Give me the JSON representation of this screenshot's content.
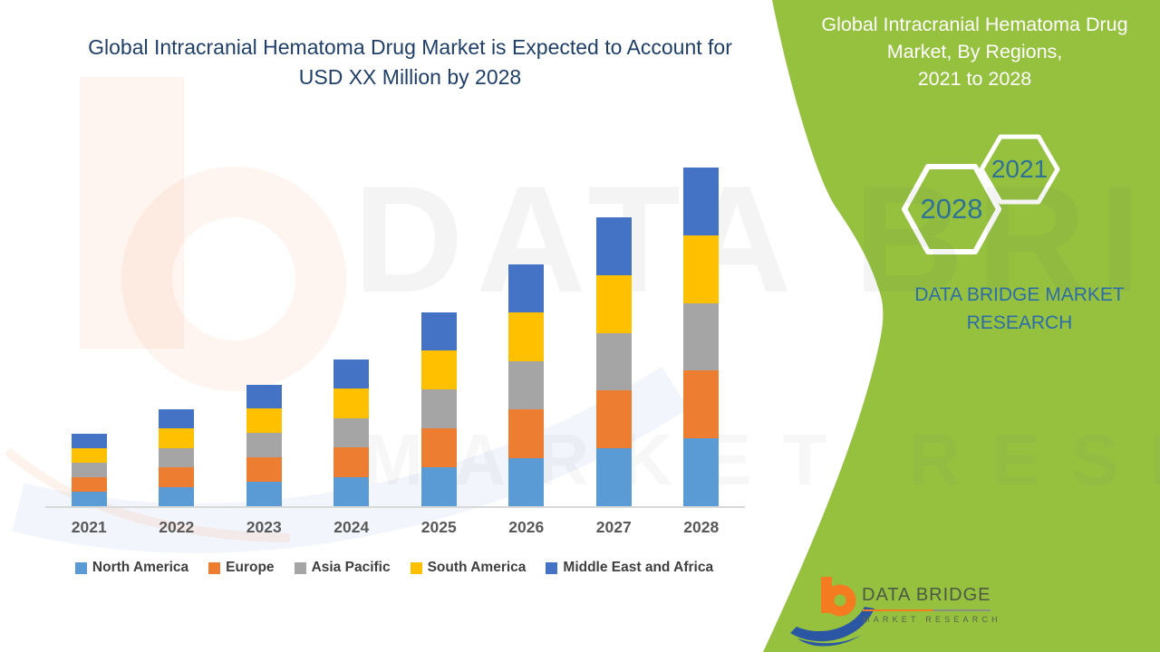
{
  "colors": {
    "title": "#1F3F68",
    "panel_green": "#95C13E",
    "hexagon_year": "#2E7296",
    "panel_brand": "#2E6DA8",
    "axis_label": "#595959",
    "legend_text": "#3F3F3F",
    "axis_line": "#D9D9D9",
    "logo_orange": "#F47B20",
    "logo_blue": "#2B56A4"
  },
  "header": {
    "title_line1": "Global Intracranial Hematoma Drug Market is Expected to Account for",
    "title_line2": "USD XX Million by 2028"
  },
  "side_panel": {
    "title_line1": "Global Intracranial Hematoma Drug",
    "title_line2": "Market, By Regions,",
    "title_line3": "2021 to 2028",
    "hexagon_year_top": "2021",
    "hexagon_year_bottom": "2028",
    "brand_line1": "DATA BRIDGE MARKET",
    "brand_line2": "RESEARCH"
  },
  "logo": {
    "name": "DATA BRIDGE",
    "subtext": "MARKET RESEARCH"
  },
  "watermark": {
    "line1": "DATA BRIDGE",
    "line2": "MARKET RESEARCH"
  },
  "chart_data": {
    "type": "bar",
    "stacked": true,
    "title": "Global Intracranial Hematoma Drug Market is Expected to Account for USD XX Million by 2028",
    "xlabel": "",
    "ylabel": "",
    "categories": [
      "2021",
      "2022",
      "2023",
      "2024",
      "2025",
      "2026",
      "2027",
      "2028"
    ],
    "series": [
      {
        "name": "North America",
        "color": "#5B9BD5",
        "values": [
          3.2,
          4.3,
          5.4,
          6.5,
          8.6,
          10.7,
          12.8,
          15.0
        ]
      },
      {
        "name": "Europe",
        "color": "#ED7D31",
        "values": [
          3.2,
          4.3,
          5.4,
          6.5,
          8.6,
          10.7,
          12.8,
          15.0
        ]
      },
      {
        "name": "Asia Pacific",
        "color": "#A5A5A5",
        "values": [
          3.2,
          4.3,
          5.4,
          6.5,
          8.6,
          10.7,
          12.8,
          15.0
        ]
      },
      {
        "name": "South America",
        "color": "#FFC000",
        "values": [
          3.2,
          4.3,
          5.4,
          6.5,
          8.6,
          10.7,
          12.8,
          15.0
        ]
      },
      {
        "name": "Middle East and Africa",
        "color": "#4472C4",
        "values": [
          3.2,
          4.3,
          5.4,
          6.5,
          8.6,
          10.7,
          12.8,
          15.0
        ]
      }
    ],
    "stack_totals": [
      16,
      21.5,
      27,
      32.5,
      43,
      53.5,
      64,
      75
    ],
    "ylim": [
      0,
      82
    ],
    "y_axis_visible": false,
    "grid": false,
    "legend_position": "bottom",
    "note": "Placeholder market-size chart: no numeric axis shown (USD XX Million); values are relative estimates read from bar heights, all five regions equal within each year."
  }
}
